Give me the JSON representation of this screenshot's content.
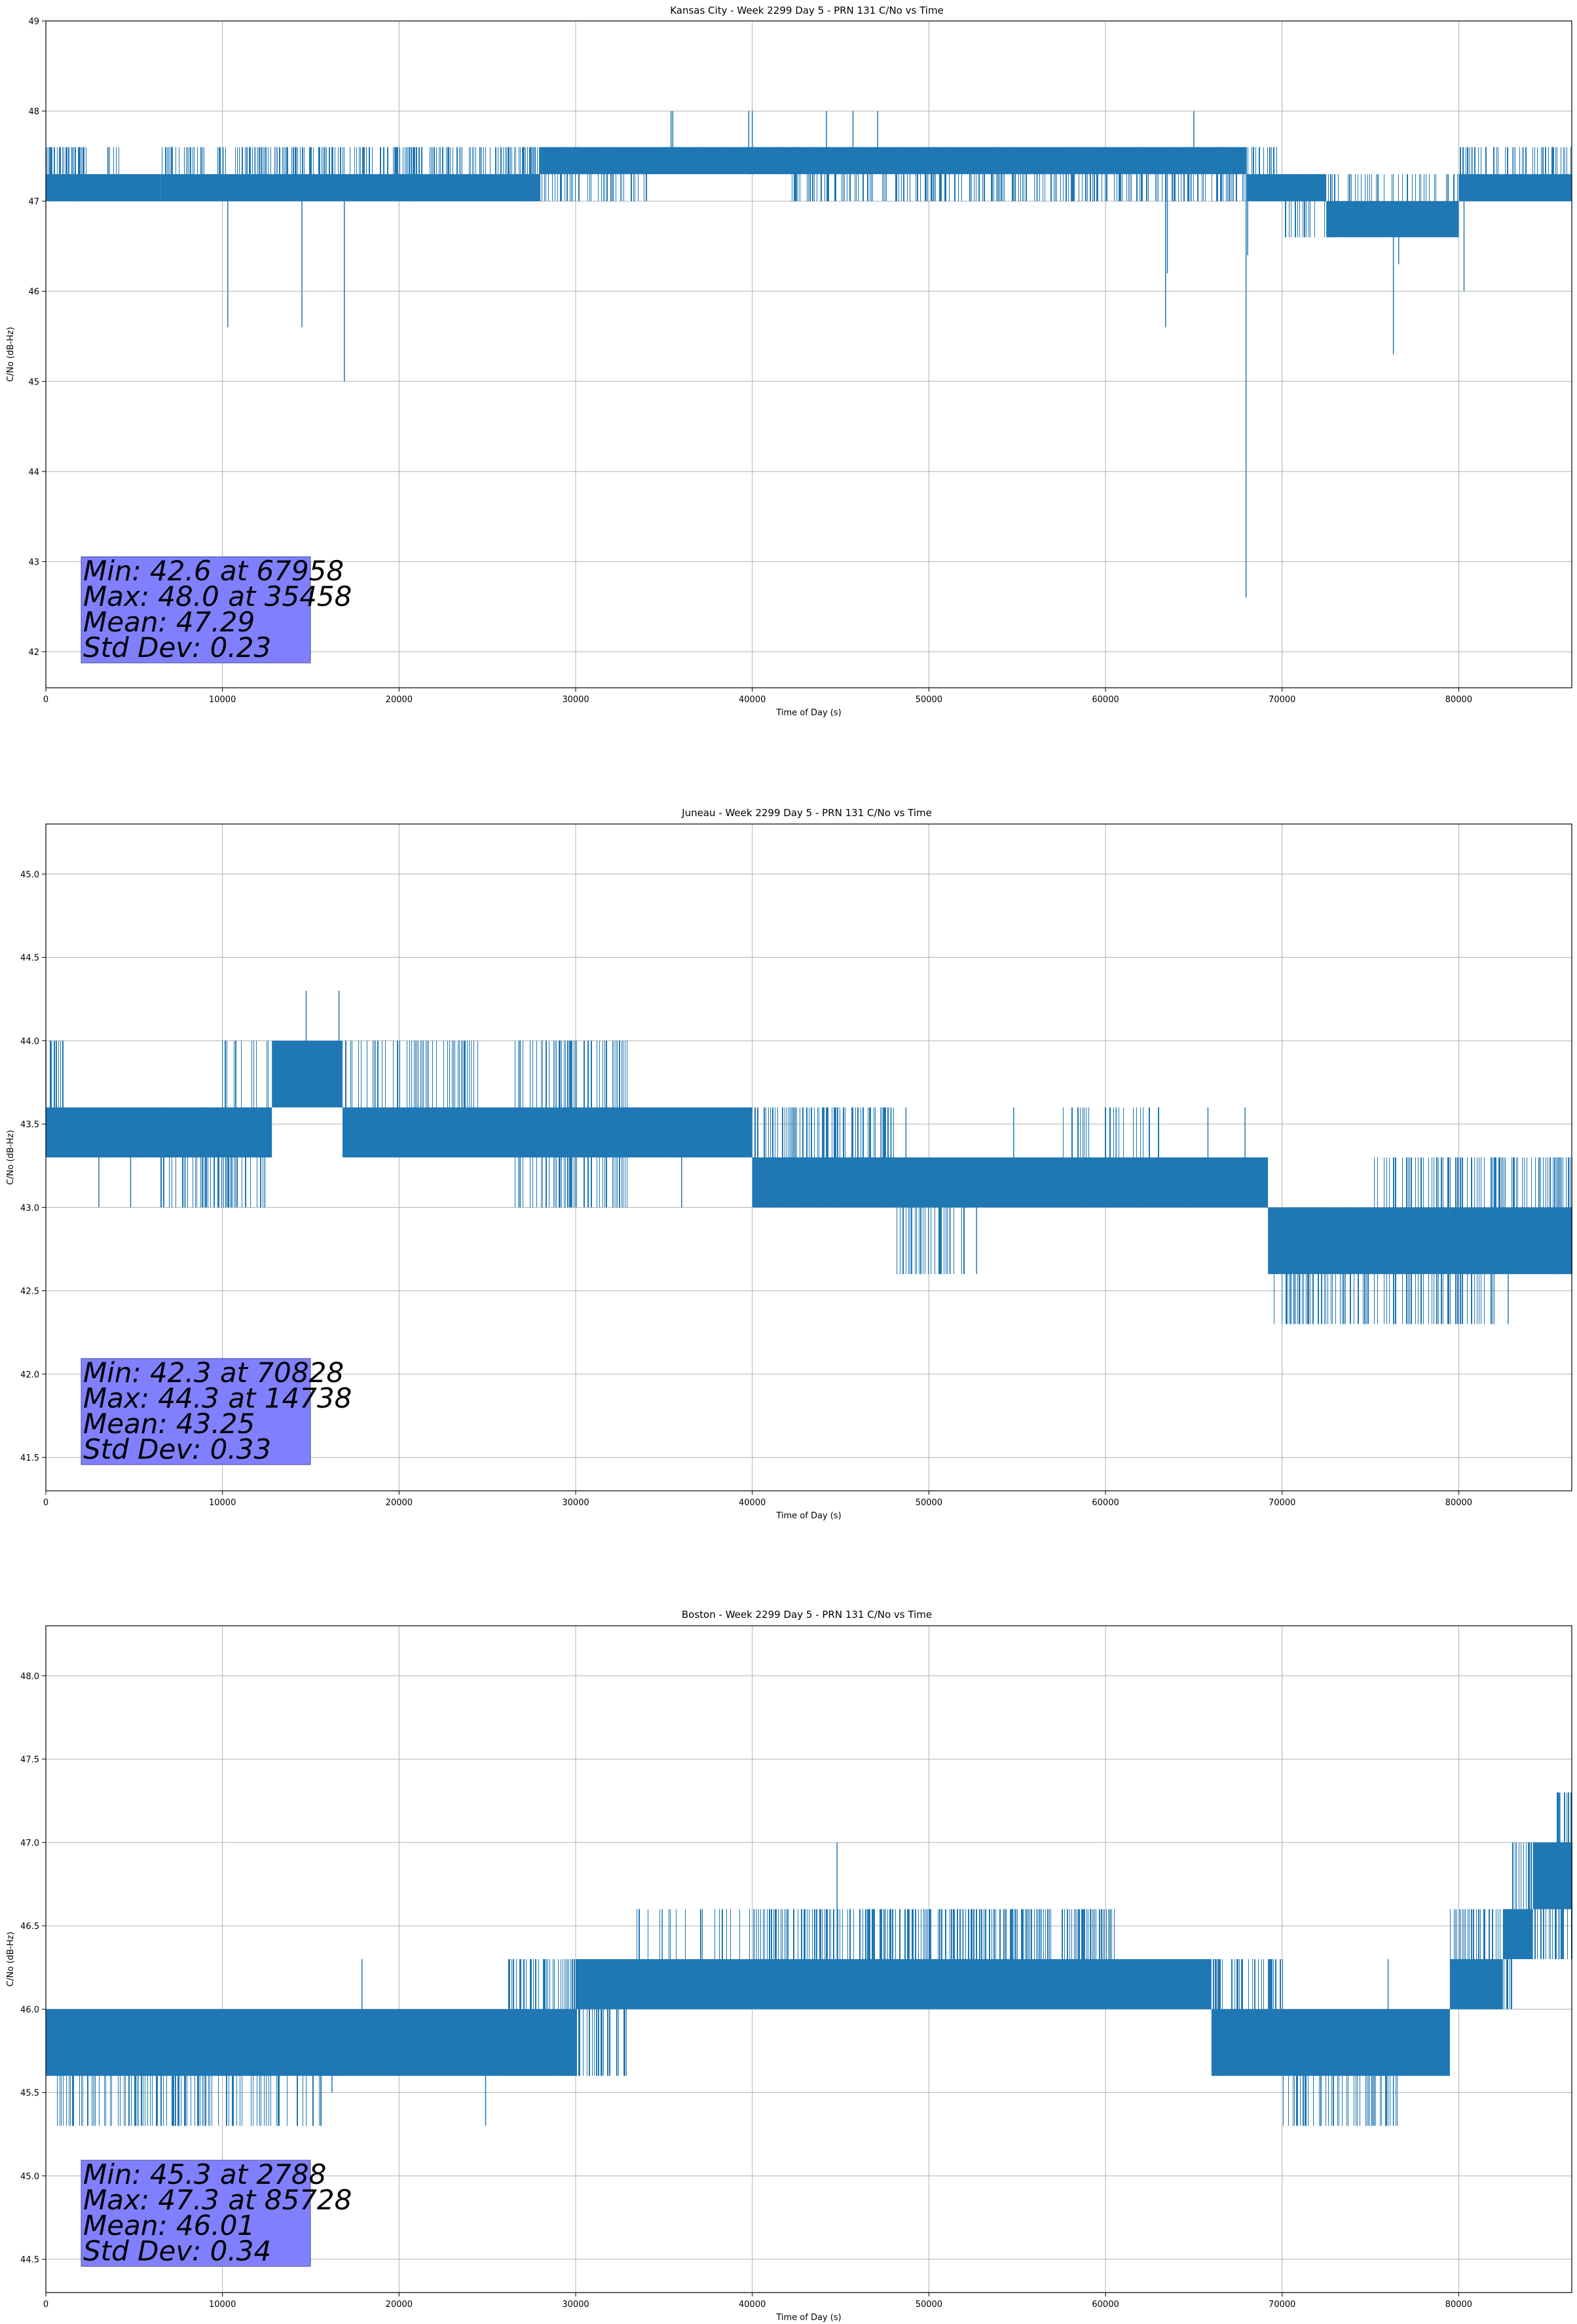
{
  "figure": {
    "series_color": "#1f77b4",
    "stats_box_color": "#8080ff"
  },
  "chart_data": [
    {
      "type": "line",
      "title": "Kansas City - Week 2299 Day 5 - PRN 131 C/No vs Time",
      "xlabel": "Time of Day (s)",
      "ylabel": "C/No (dB-Hz)",
      "xlim": [
        0,
        86400
      ],
      "ylim": [
        41.6,
        49.0
      ],
      "xticks": [
        0,
        10000,
        20000,
        30000,
        40000,
        50000,
        60000,
        70000,
        80000
      ],
      "yticks": [
        42,
        43,
        44,
        45,
        46,
        47,
        48,
        49
      ],
      "grid": true,
      "stats": [
        "Min: 42.6 at 67958",
        "Max: 48.0 at 35458",
        "Mean: 47.29",
        "Std Dev: 0.23"
      ],
      "bands": [
        {
          "x0": 0,
          "x1": 6500,
          "low": 47.0,
          "high": 47.3
        },
        {
          "x0": 6500,
          "x1": 28000,
          "low": 47.0,
          "high": 47.3
        },
        {
          "x0": 28000,
          "x1": 63000,
          "low": 47.3,
          "high": 47.6
        },
        {
          "x0": 63000,
          "x1": 68000,
          "low": 47.3,
          "high": 47.6
        },
        {
          "x0": 68000,
          "x1": 72500,
          "low": 47.0,
          "high": 47.3
        },
        {
          "x0": 72500,
          "x1": 80000,
          "low": 46.6,
          "high": 47.0
        },
        {
          "x0": 80000,
          "x1": 86400,
          "low": 47.0,
          "high": 47.3
        }
      ],
      "flicker": [
        {
          "x0": 0,
          "x1": 2300,
          "low": 47.0,
          "high": 47.6,
          "density": 0.5
        },
        {
          "x0": 3500,
          "x1": 4200,
          "low": 47.0,
          "high": 47.6,
          "density": 0.3
        },
        {
          "x0": 6500,
          "x1": 28000,
          "low": 47.0,
          "high": 47.6,
          "density": 0.35
        },
        {
          "x0": 26500,
          "x1": 34000,
          "low": 47.0,
          "high": 47.6,
          "density": 0.25
        },
        {
          "x0": 34000,
          "x1": 42000,
          "low": 47.3,
          "high": 47.6,
          "density": 0.35
        },
        {
          "x0": 42000,
          "x1": 68000,
          "low": 47.0,
          "high": 47.6,
          "density": 0.3
        },
        {
          "x0": 68000,
          "x1": 70000,
          "low": 47.0,
          "high": 47.6,
          "density": 0.3
        },
        {
          "x0": 70000,
          "x1": 73000,
          "low": 46.6,
          "high": 47.3,
          "density": 0.25
        },
        {
          "x0": 73000,
          "x1": 80000,
          "low": 46.6,
          "high": 47.3,
          "density": 0.2
        },
        {
          "x0": 80000,
          "x1": 86400,
          "low": 47.0,
          "high": 47.6,
          "density": 0.3
        }
      ],
      "spikes": [
        [
          10300,
          45.6
        ],
        [
          14500,
          45.6
        ],
        [
          16900,
          45.0
        ],
        [
          35400,
          48.0
        ],
        [
          35500,
          48.0
        ],
        [
          39800,
          48.0
        ],
        [
          40000,
          48.0
        ],
        [
          44200,
          48.0
        ],
        [
          45700,
          48.0
        ],
        [
          47100,
          48.0
        ],
        [
          63400,
          45.6
        ],
        [
          63500,
          46.2
        ],
        [
          65000,
          48.0
        ],
        [
          67958,
          42.6
        ],
        [
          68050,
          46.4
        ],
        [
          76300,
          45.3
        ],
        [
          76600,
          46.3
        ],
        [
          80300,
          46.0
        ]
      ]
    },
    {
      "type": "line",
      "title": "Juneau - Week 2299 Day 5 - PRN 131 C/No vs Time",
      "xlabel": "Time of Day (s)",
      "ylabel": "C/No (dB-Hz)",
      "xlim": [
        0,
        86400
      ],
      "ylim": [
        41.3,
        45.3
      ],
      "xticks": [
        0,
        10000,
        20000,
        30000,
        40000,
        50000,
        60000,
        70000,
        80000
      ],
      "yticks": [
        41.5,
        42.0,
        42.5,
        43.0,
        43.5,
        44.0,
        44.5,
        45.0
      ],
      "grid": true,
      "stats": [
        "Min: 42.3 at 70828",
        "Max: 44.3 at 14738",
        "Mean: 43.25",
        "Std Dev: 0.33"
      ],
      "bands": [
        {
          "x0": 0,
          "x1": 12800,
          "low": 43.3,
          "high": 43.6
        },
        {
          "x0": 12800,
          "x1": 16800,
          "low": 43.6,
          "high": 44.0
        },
        {
          "x0": 16800,
          "x1": 40000,
          "low": 43.3,
          "high": 43.6
        },
        {
          "x0": 40000,
          "x1": 69200,
          "low": 43.0,
          "high": 43.3
        },
        {
          "x0": 69200,
          "x1": 79500,
          "low": 42.6,
          "high": 43.0
        },
        {
          "x0": 79500,
          "x1": 86400,
          "low": 42.6,
          "high": 43.0
        }
      ],
      "flicker": [
        {
          "x0": 0,
          "x1": 1000,
          "low": 43.3,
          "high": 44.0,
          "density": 0.5
        },
        {
          "x0": 6500,
          "x1": 12800,
          "low": 43.0,
          "high": 43.6,
          "density": 0.3
        },
        {
          "x0": 9800,
          "x1": 12800,
          "low": 43.3,
          "high": 44.0,
          "density": 0.15
        },
        {
          "x0": 16800,
          "x1": 24500,
          "low": 43.3,
          "high": 44.0,
          "density": 0.25
        },
        {
          "x0": 26500,
          "x1": 33000,
          "low": 43.0,
          "high": 44.0,
          "density": 0.35
        },
        {
          "x0": 33000,
          "x1": 40000,
          "low": 43.3,
          "high": 43.6,
          "density": 0.15
        },
        {
          "x0": 40000,
          "x1": 48000,
          "low": 43.0,
          "high": 43.6,
          "density": 0.35
        },
        {
          "x0": 48000,
          "x1": 52000,
          "low": 42.6,
          "high": 43.3,
          "density": 0.3
        },
        {
          "x0": 52000,
          "x1": 69200,
          "low": 43.0,
          "high": 43.3,
          "density": 0.2
        },
        {
          "x0": 57500,
          "x1": 63000,
          "low": 43.0,
          "high": 43.6,
          "density": 0.15
        },
        {
          "x0": 69200,
          "x1": 75000,
          "low": 42.3,
          "high": 43.0,
          "density": 0.3
        },
        {
          "x0": 75000,
          "x1": 82000,
          "low": 42.3,
          "high": 43.3,
          "density": 0.3
        },
        {
          "x0": 82000,
          "x1": 86400,
          "low": 42.6,
          "high": 43.3,
          "density": 0.35
        }
      ],
      "spikes": [
        [
          14738,
          44.3
        ],
        [
          16600,
          44.3
        ],
        [
          3000,
          43.0
        ],
        [
          4800,
          43.0
        ],
        [
          12400,
          43.0
        ],
        [
          36000,
          43.0
        ],
        [
          48700,
          43.6
        ],
        [
          52700,
          42.6
        ],
        [
          54800,
          43.6
        ],
        [
          60600,
          43.6
        ],
        [
          65800,
          43.6
        ],
        [
          67900,
          43.6
        ],
        [
          71000,
          42.3
        ],
        [
          75800,
          43.0
        ],
        [
          82800,
          42.3
        ]
      ]
    },
    {
      "type": "line",
      "title": "Boston - Week 2299 Day 5 - PRN 131 C/No vs Time",
      "xlabel": "Time of Day (s)",
      "ylabel": "C/No (dB-Hz)",
      "xlim": [
        0,
        86400
      ],
      "ylim": [
        44.3,
        48.3
      ],
      "xticks": [
        0,
        10000,
        20000,
        30000,
        40000,
        50000,
        60000,
        70000,
        80000
      ],
      "yticks": [
        44.5,
        45.0,
        45.5,
        46.0,
        46.5,
        47.0,
        47.5,
        48.0
      ],
      "grid": true,
      "stats": [
        "Min: 45.3 at 2788",
        "Max: 47.3 at 85728",
        "Mean: 46.01",
        "Std Dev: 0.34"
      ],
      "bands": [
        {
          "x0": 0,
          "x1": 30000,
          "low": 45.6,
          "high": 46.0
        },
        {
          "x0": 30000,
          "x1": 66000,
          "low": 46.0,
          "high": 46.3
        },
        {
          "x0": 66000,
          "x1": 79500,
          "low": 45.6,
          "high": 46.0
        },
        {
          "x0": 79500,
          "x1": 82500,
          "low": 46.0,
          "high": 46.3
        },
        {
          "x0": 82500,
          "x1": 84200,
          "low": 46.3,
          "high": 46.6
        },
        {
          "x0": 84200,
          "x1": 86400,
          "low": 46.6,
          "high": 47.0
        }
      ],
      "flicker": [
        {
          "x0": 500,
          "x1": 16000,
          "low": 45.3,
          "high": 46.0,
          "density": 0.3
        },
        {
          "x0": 16000,
          "x1": 30000,
          "low": 45.6,
          "high": 46.0,
          "density": 0.35
        },
        {
          "x0": 26000,
          "x1": 33000,
          "low": 45.6,
          "high": 46.3,
          "density": 0.35
        },
        {
          "x0": 33000,
          "x1": 40000,
          "low": 46.0,
          "high": 46.6,
          "density": 0.12
        },
        {
          "x0": 40000,
          "x1": 60500,
          "low": 46.0,
          "high": 46.6,
          "density": 0.4
        },
        {
          "x0": 60500,
          "x1": 66500,
          "low": 46.0,
          "high": 46.3,
          "density": 0.2
        },
        {
          "x0": 66000,
          "x1": 70000,
          "low": 45.6,
          "high": 46.3,
          "density": 0.3
        },
        {
          "x0": 70000,
          "x1": 76500,
          "low": 45.3,
          "high": 46.0,
          "density": 0.3
        },
        {
          "x0": 76500,
          "x1": 79500,
          "low": 45.6,
          "high": 46.0,
          "density": 0.2
        },
        {
          "x0": 79500,
          "x1": 83000,
          "low": 46.0,
          "high": 46.6,
          "density": 0.35
        },
        {
          "x0": 83000,
          "x1": 86400,
          "low": 46.3,
          "high": 47.0,
          "density": 0.4
        },
        {
          "x0": 85500,
          "x1": 86400,
          "low": 46.6,
          "high": 47.3,
          "density": 0.5
        }
      ],
      "spikes": [
        [
          2788,
          45.3
        ],
        [
          16200,
          45.5
        ],
        [
          17900,
          46.3
        ],
        [
          24900,
          45.3
        ],
        [
          34900,
          46.6
        ],
        [
          44800,
          47.0
        ],
        [
          46100,
          46.6
        ],
        [
          56300,
          46.6
        ],
        [
          76000,
          46.3
        ],
        [
          76300,
          45.3
        ],
        [
          85728,
          47.3
        ]
      ]
    }
  ]
}
